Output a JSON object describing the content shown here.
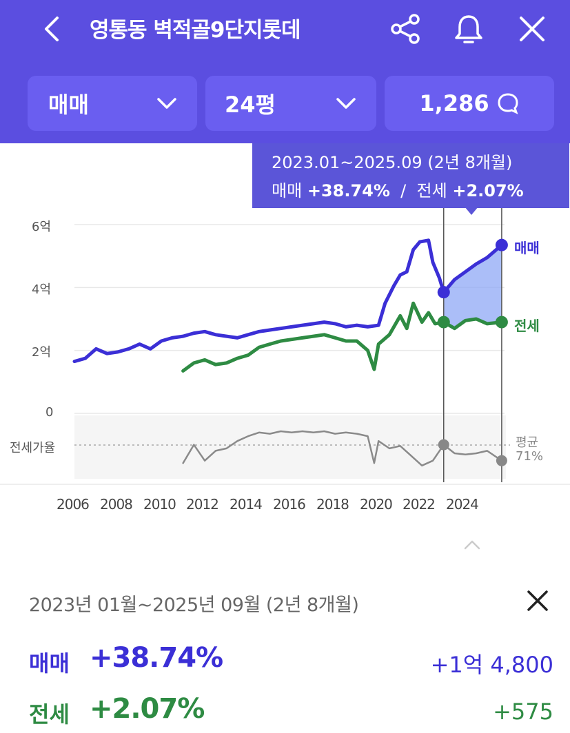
{
  "header": {
    "title": "영통동 벽적골9단지롯데",
    "deal_type": "매매",
    "size": "24평",
    "comment_count": "1,286"
  },
  "tooltip": {
    "period": "2023.01~2025.09 (2년 8개월)",
    "sale_label": "매매",
    "sale_pct": "+38.74%",
    "separator": "/",
    "lease_label": "전세",
    "lease_pct": "+2.07%"
  },
  "chart_data": {
    "type": "line",
    "y_ticks": [
      "6억",
      "4억",
      "2억",
      "0"
    ],
    "x_ticks": [
      "2006",
      "2008",
      "2010",
      "2012",
      "2014",
      "2016",
      "2018",
      "2020",
      "2022",
      "2024"
    ],
    "series": [
      {
        "name": "매매",
        "color": "#3b2fd6",
        "points": [
          [
            2006.0,
            1.65
          ],
          [
            2006.5,
            1.75
          ],
          [
            2007.0,
            2.05
          ],
          [
            2007.5,
            1.9
          ],
          [
            2008.0,
            1.95
          ],
          [
            2008.5,
            2.05
          ],
          [
            2009.0,
            2.2
          ],
          [
            2009.5,
            2.05
          ],
          [
            2010.0,
            2.3
          ],
          [
            2010.5,
            2.4
          ],
          [
            2011.0,
            2.45
          ],
          [
            2011.5,
            2.55
          ],
          [
            2012.0,
            2.6
          ],
          [
            2012.5,
            2.5
          ],
          [
            2013.0,
            2.45
          ],
          [
            2013.5,
            2.4
          ],
          [
            2014.0,
            2.5
          ],
          [
            2014.5,
            2.6
          ],
          [
            2015.0,
            2.65
          ],
          [
            2015.5,
            2.7
          ],
          [
            2016.0,
            2.75
          ],
          [
            2016.5,
            2.8
          ],
          [
            2017.0,
            2.85
          ],
          [
            2017.5,
            2.9
          ],
          [
            2018.0,
            2.85
          ],
          [
            2018.5,
            2.75
          ],
          [
            2019.0,
            2.8
          ],
          [
            2019.5,
            2.75
          ],
          [
            2020.0,
            2.8
          ],
          [
            2020.3,
            3.5
          ],
          [
            2020.7,
            4.05
          ],
          [
            2021.0,
            4.4
          ],
          [
            2021.3,
            4.5
          ],
          [
            2021.6,
            5.2
          ],
          [
            2021.9,
            5.45
          ],
          [
            2022.3,
            5.5
          ],
          [
            2022.5,
            4.8
          ],
          [
            2022.8,
            4.3
          ],
          [
            2023.0,
            3.85
          ],
          [
            2023.5,
            4.25
          ],
          [
            2024.0,
            4.5
          ],
          [
            2024.5,
            4.75
          ],
          [
            2025.0,
            4.95
          ],
          [
            2025.67,
            5.35
          ]
        ]
      },
      {
        "name": "전세",
        "color": "#2e8b43",
        "points": [
          [
            2011.0,
            1.35
          ],
          [
            2011.5,
            1.6
          ],
          [
            2012.0,
            1.7
          ],
          [
            2012.5,
            1.55
          ],
          [
            2013.0,
            1.6
          ],
          [
            2013.5,
            1.75
          ],
          [
            2014.0,
            1.85
          ],
          [
            2014.5,
            2.1
          ],
          [
            2015.0,
            2.2
          ],
          [
            2015.5,
            2.3
          ],
          [
            2016.0,
            2.35
          ],
          [
            2016.5,
            2.4
          ],
          [
            2017.0,
            2.45
          ],
          [
            2017.5,
            2.5
          ],
          [
            2018.0,
            2.4
          ],
          [
            2018.5,
            2.3
          ],
          [
            2019.0,
            2.3
          ],
          [
            2019.5,
            2.0
          ],
          [
            2019.8,
            1.4
          ],
          [
            2020.0,
            2.2
          ],
          [
            2020.5,
            2.5
          ],
          [
            2021.0,
            3.1
          ],
          [
            2021.3,
            2.7
          ],
          [
            2021.6,
            3.5
          ],
          [
            2022.0,
            2.9
          ],
          [
            2022.3,
            3.2
          ],
          [
            2022.6,
            2.85
          ],
          [
            2023.0,
            2.9
          ],
          [
            2023.5,
            2.7
          ],
          [
            2024.0,
            2.95
          ],
          [
            2024.5,
            3.0
          ],
          [
            2025.0,
            2.85
          ],
          [
            2025.67,
            2.9
          ]
        ]
      },
      {
        "name": "전세가율",
        "color": "#8a8a8a",
        "points": [
          [
            2011.0,
            0.6
          ],
          [
            2011.5,
            0.75
          ],
          [
            2012.0,
            0.62
          ],
          [
            2012.5,
            0.7
          ],
          [
            2013.0,
            0.72
          ],
          [
            2013.5,
            0.78
          ],
          [
            2014.0,
            0.82
          ],
          [
            2014.5,
            0.85
          ],
          [
            2015.0,
            0.84
          ],
          [
            2015.5,
            0.86
          ],
          [
            2016.0,
            0.85
          ],
          [
            2016.5,
            0.86
          ],
          [
            2017.0,
            0.85
          ],
          [
            2017.5,
            0.86
          ],
          [
            2018.0,
            0.84
          ],
          [
            2018.5,
            0.85
          ],
          [
            2019.0,
            0.84
          ],
          [
            2019.5,
            0.82
          ],
          [
            2019.8,
            0.6
          ],
          [
            2020.0,
            0.78
          ],
          [
            2020.5,
            0.72
          ],
          [
            2021.0,
            0.74
          ],
          [
            2021.5,
            0.66
          ],
          [
            2022.0,
            0.58
          ],
          [
            2022.5,
            0.62
          ],
          [
            2023.0,
            0.75
          ],
          [
            2023.5,
            0.68
          ],
          [
            2024.0,
            0.67
          ],
          [
            2024.5,
            0.68
          ],
          [
            2025.0,
            0.7
          ],
          [
            2025.67,
            0.62
          ]
        ]
      }
    ],
    "ratio_label": "전세가율",
    "avg_label": "평균",
    "avg_value": "71%",
    "range_start": 2023.0,
    "range_end": 2025.67,
    "right_labels": [
      "매매",
      "전세"
    ]
  },
  "summary": {
    "range": "2023년 01월~2025년 09월 (2년 8개월)",
    "sale_label": "매매",
    "sale_pct": "+38.74%",
    "sale_amount": "+1억 4,800",
    "lease_label": "전세",
    "lease_pct": "+2.07%",
    "lease_amount": "+575"
  },
  "colors": {
    "header_bg": "#5b4ee0",
    "sale": "#3b2fd6",
    "lease": "#2e8b43"
  }
}
